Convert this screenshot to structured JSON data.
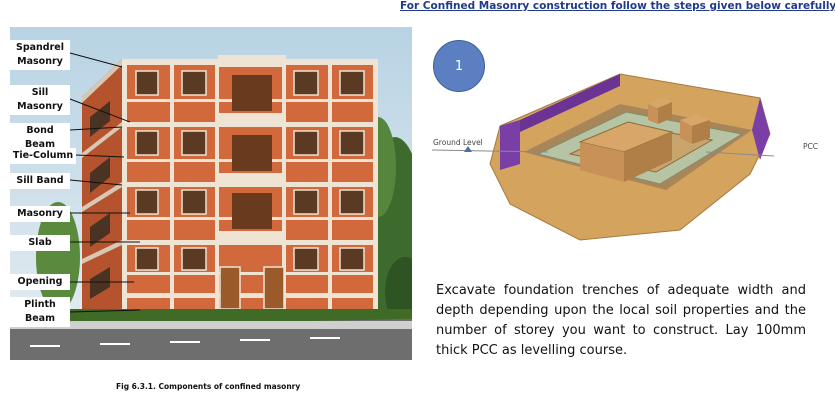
{
  "heading": "For Confined Masonry construction follow the steps given below carefully.",
  "figure": {
    "labels": [
      "Spandrel\nMasonry",
      "Sill\nMasonry",
      "Bond Beam",
      "Tie-Column",
      "Sill Band",
      "Masonry",
      "Slab",
      "Opening",
      "Plinth\nBeam"
    ],
    "caption": "Fig 6.3.1. Components of confined masonry"
  },
  "step": {
    "number": "1",
    "diagram_labels": {
      "ground_level": "Ground Level",
      "pcc": "PCC"
    },
    "description": "Excavate foundation trenches of adequate width and depth depending upon the local soil properties and the number of storey you  want to construct. Lay 100mm thick PCC as levelling course."
  },
  "colors": {
    "heading": "#1f3a8a",
    "step_circle": "#5b7fc0",
    "brick": "#d2693c",
    "concrete_band": "#efe3d3",
    "soil": "#d4a35d",
    "trench_wall": "#7a3fa6",
    "pcc": "#b7c4a3"
  }
}
